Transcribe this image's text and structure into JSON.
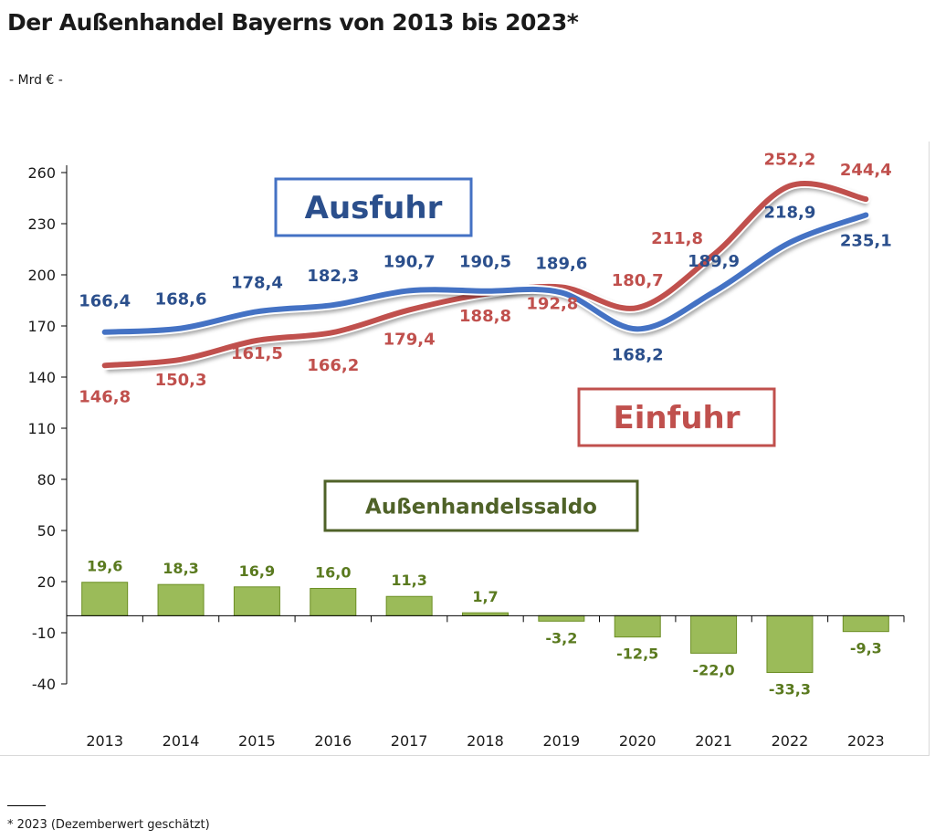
{
  "header": {
    "title": "Der Außenhandel Bayerns von 2013 bis 2023*",
    "unit": "- Mrd € -"
  },
  "footnote": "* 2023 (Dezemberwert geschätzt)",
  "colors": {
    "export": "#4472C4",
    "export_text": "#2B4F8C",
    "import": "#C0504D",
    "import_text": "#C0504D",
    "balance_fill": "#9BBB59",
    "balance_border": "#6B8E23",
    "balance_text": "#5A7A1F",
    "axis": "#000000"
  },
  "chart_data": {
    "type": "line",
    "title": "Der Außenhandel Bayerns von 2013 bis 2023*",
    "ylabel": "Mrd €",
    "xlabel": "",
    "ylim": [
      -40,
      260
    ],
    "yticks": [
      260,
      230,
      200,
      170,
      140,
      110,
      80,
      50,
      20,
      -10,
      -40
    ],
    "categories": [
      "2013",
      "2014",
      "2015",
      "2016",
      "2017",
      "2018",
      "2019",
      "2020",
      "2021",
      "2022",
      "2023"
    ],
    "series": [
      {
        "key": "export",
        "name": "Ausfuhr",
        "type": "line",
        "values": [
          166.4,
          168.6,
          178.4,
          182.3,
          190.7,
          190.5,
          189.6,
          168.2,
          189.9,
          218.9,
          235.1
        ],
        "labels": [
          "166,4",
          "168,6",
          "178,4",
          "182,3",
          "190,7",
          "190,5",
          "189,6",
          "168,2",
          "189,9",
          "218,9",
          "235,1"
        ]
      },
      {
        "key": "import",
        "name": "Einfuhr",
        "type": "line",
        "values": [
          146.8,
          150.3,
          161.5,
          166.2,
          179.4,
          188.8,
          192.8,
          180.7,
          211.8,
          252.2,
          244.4
        ],
        "labels": [
          "146,8",
          "150,3",
          "161,5",
          "166,2",
          "179,4",
          "188,8",
          "192,8",
          "180,7",
          "211,8",
          "252,2",
          "244,4"
        ]
      },
      {
        "key": "balance",
        "name": "Außenhandelssaldo",
        "type": "bar",
        "values": [
          19.6,
          18.3,
          16.9,
          16.0,
          11.3,
          1.7,
          -3.2,
          -12.5,
          -22.0,
          -33.3,
          -9.3
        ],
        "labels": [
          "19,6",
          "18,3",
          "16,9",
          "16,0",
          "11,3",
          "1,7",
          "-3,2",
          "-12,5",
          "-22,0",
          "-33,3",
          "-9,3"
        ]
      }
    ],
    "legend": "inline boxed labels"
  }
}
